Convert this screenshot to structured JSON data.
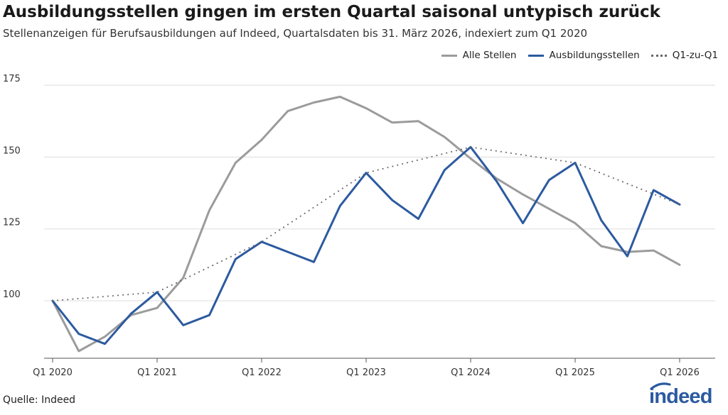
{
  "chart_data": {
    "type": "line",
    "title": "Ausbildungsstellen gingen im ersten Quartal saisonal untypisch zurück",
    "subtitle": "Stellenanzeigen für Berufsausbildungen auf Indeed, Quartalsdaten bis 31. März 2026, indexiert zum Q1 2020",
    "x_tick_labels": [
      "Q1 2020",
      "Q1 2021",
      "Q1 2022",
      "Q1 2023",
      "Q1 2024",
      "Q1 2025",
      "Q1 2026"
    ],
    "y_ticks": [
      100,
      125,
      150,
      175
    ],
    "ylim": [
      80,
      178
    ],
    "legend_position": "top-right",
    "grid": "horizontal",
    "series": [
      {
        "name": "Alle Stellen",
        "color": "#9b9b9b",
        "style": "solid",
        "values": [
          100,
          82.5,
          87.5,
          95,
          97.5,
          108,
          131.5,
          148,
          156,
          166,
          169,
          171,
          167,
          162,
          162.5,
          157,
          149.5,
          142.5,
          137,
          132,
          127,
          119,
          117,
          117.5,
          112.5
        ]
      },
      {
        "name": "Ausbildungsstellen",
        "color": "#2c5aa0",
        "style": "solid",
        "values": [
          100,
          88.5,
          85,
          95.5,
          103,
          91.5,
          95,
          114.5,
          120.5,
          117,
          113.5,
          133,
          144.5,
          135,
          128.5,
          145.5,
          153.5,
          141.5,
          127,
          142,
          148,
          128,
          115.5,
          138.5,
          133.5
        ]
      },
      {
        "name": "Q1-zu-Q1",
        "color": "#666666",
        "style": "dotted",
        "points": [
          [
            0,
            100
          ],
          [
            4,
            103
          ],
          [
            8,
            120.5
          ],
          [
            12,
            144.5
          ],
          [
            16,
            153.5
          ],
          [
            20,
            148
          ],
          [
            24,
            133.5
          ]
        ]
      }
    ],
    "source": "Quelle: Indeed",
    "brand": "indeed"
  }
}
